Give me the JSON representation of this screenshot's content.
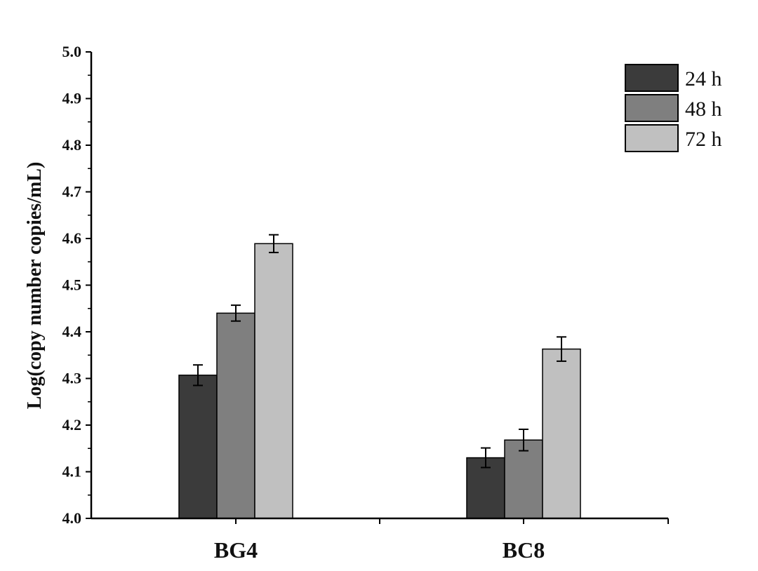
{
  "chart_data": {
    "type": "bar",
    "categories": [
      "BG4",
      "BC8"
    ],
    "series": [
      {
        "name": "24 h",
        "color": "#3b3b3b",
        "values": [
          4.307,
          4.13
        ],
        "errors": [
          0.022,
          0.021
        ]
      },
      {
        "name": "48 h",
        "color": "#7f7f7f",
        "values": [
          4.44,
          4.168
        ],
        "errors": [
          0.017,
          0.023
        ]
      },
      {
        "name": "72 h",
        "color": "#c0c0c0",
        "values": [
          4.589,
          4.363
        ],
        "errors": [
          0.019,
          0.026
        ]
      }
    ],
    "ylabel": "Log(copy number copies/mL)",
    "ylim": [
      4.0,
      5.0
    ],
    "yticks": [
      "4.0",
      "4.1",
      "4.2",
      "4.3",
      "4.4",
      "4.5",
      "4.6",
      "4.7",
      "4.8",
      "4.9",
      "5.0"
    ],
    "legend_position": "top-right",
    "grid": false
  }
}
